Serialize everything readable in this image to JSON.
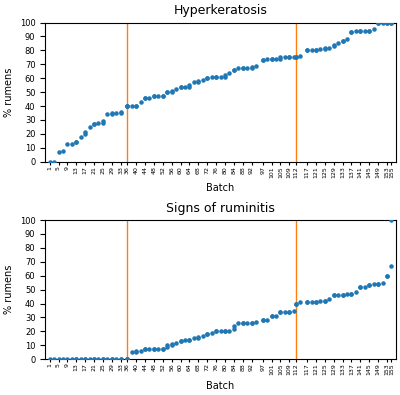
{
  "chart_data": [
    {
      "type": "scatter",
      "title": "Hyperkeratosis",
      "xlabel": "Batch",
      "ylabel": "% rumens",
      "x": [
        1,
        3,
        5,
        7,
        9,
        11,
        13,
        13,
        15,
        17,
        17,
        19,
        21,
        21,
        23,
        25,
        25,
        27,
        29,
        29,
        31,
        33,
        33,
        36,
        36,
        36,
        38,
        40,
        40,
        42,
        44,
        44,
        46,
        48,
        48,
        50,
        52,
        52,
        54,
        54,
        56,
        56,
        58,
        60,
        60,
        62,
        64,
        64,
        66,
        68,
        68,
        70,
        72,
        72,
        74,
        76,
        76,
        78,
        80,
        80,
        82,
        84,
        84,
        86,
        88,
        88,
        90,
        92,
        92,
        94,
        97,
        97,
        99,
        101,
        101,
        103,
        105,
        105,
        107,
        109,
        109,
        111,
        112,
        112,
        114,
        117,
        117,
        119,
        121,
        121,
        123,
        125,
        125,
        127,
        129,
        129,
        131,
        133,
        133,
        135,
        137,
        137,
        139,
        141,
        141,
        143,
        145,
        145,
        147,
        149,
        149,
        151,
        153,
        153,
        155,
        155
      ],
      "values": [
        0,
        0,
        7,
        8,
        13,
        13,
        14,
        14,
        18,
        20,
        21,
        25,
        27,
        27,
        28,
        28,
        29,
        34,
        34,
        35,
        35,
        35,
        36,
        40,
        40,
        40,
        40,
        40,
        40,
        43,
        46,
        46,
        46,
        47,
        47,
        47,
        47,
        47,
        50,
        50,
        50,
        51,
        52,
        54,
        54,
        54,
        54,
        55,
        57,
        57,
        58,
        59,
        60,
        60,
        61,
        61,
        61,
        61,
        61,
        62,
        64,
        66,
        66,
        67,
        67,
        67,
        67,
        67,
        68,
        69,
        73,
        73,
        74,
        74,
        74,
        74,
        74,
        75,
        75,
        75,
        75,
        75,
        75,
        75,
        76,
        80,
        80,
        80,
        80,
        80,
        81,
        81,
        82,
        82,
        83,
        84,
        85,
        87,
        87,
        88,
        93,
        93,
        94,
        94,
        94,
        94,
        94,
        94,
        95,
        100,
        100,
        100,
        100,
        100,
        100,
        100
      ],
      "vlines": [
        36,
        112
      ],
      "xlim": [
        -1,
        157
      ],
      "xticks": [
        1,
        5,
        9,
        13,
        17,
        21,
        25,
        29,
        33,
        36,
        40,
        44,
        48,
        52,
        56,
        60,
        64,
        68,
        72,
        76,
        80,
        84,
        88,
        92,
        97,
        101,
        105,
        109,
        112,
        117,
        121,
        125,
        129,
        133,
        137,
        141,
        145,
        149,
        153,
        155
      ],
      "ylim": [
        0,
        100
      ],
      "yticks": [
        0,
        10,
        20,
        30,
        40,
        50,
        60,
        70,
        80,
        90,
        100
      ],
      "grid": false
    },
    {
      "type": "scatter",
      "title": "Signs of ruminitis",
      "xlabel": "Batch",
      "ylabel": "% rumens",
      "x": [
        1,
        3,
        5,
        7,
        9,
        11,
        13,
        13,
        15,
        17,
        17,
        19,
        21,
        21,
        23,
        25,
        25,
        27,
        29,
        29,
        31,
        33,
        33,
        36,
        36,
        36,
        38,
        40,
        40,
        42,
        44,
        44,
        46,
        48,
        48,
        50,
        52,
        52,
        54,
        54,
        56,
        56,
        58,
        60,
        60,
        62,
        64,
        64,
        66,
        68,
        68,
        70,
        72,
        72,
        74,
        76,
        76,
        78,
        80,
        80,
        82,
        84,
        84,
        86,
        88,
        88,
        90,
        92,
        92,
        94,
        97,
        97,
        99,
        101,
        101,
        103,
        105,
        105,
        107,
        109,
        109,
        111,
        112,
        112,
        114,
        117,
        117,
        119,
        121,
        121,
        123,
        125,
        125,
        127,
        129,
        129,
        131,
        133,
        133,
        135,
        137,
        137,
        139,
        141,
        141,
        143,
        145,
        145,
        147,
        149,
        149,
        151,
        153,
        153,
        155,
        155
      ],
      "values": [
        0,
        0,
        0,
        0,
        0,
        0,
        0,
        0,
        0,
        0,
        0,
        0,
        0,
        0,
        0,
        0,
        0,
        0,
        0,
        0,
        0,
        0,
        0,
        0,
        0,
        0,
        5,
        5,
        6,
        6,
        7,
        7,
        7,
        7,
        7,
        7,
        7,
        7,
        9,
        10,
        10,
        11,
        12,
        13,
        13,
        14,
        14,
        14,
        15,
        15,
        16,
        17,
        18,
        18,
        19,
        20,
        20,
        20,
        20,
        20,
        20,
        22,
        24,
        26,
        26,
        26,
        26,
        26,
        26,
        27,
        28,
        28,
        28,
        31,
        31,
        31,
        34,
        34,
        34,
        34,
        34,
        35,
        40,
        40,
        41,
        41,
        41,
        41,
        41,
        41,
        42,
        42,
        42,
        43,
        46,
        46,
        46,
        46,
        46,
        47,
        47,
        47,
        48,
        52,
        52,
        52,
        53,
        53,
        54,
        54,
        54,
        55,
        60,
        60,
        67,
        100
      ],
      "vlines": [
        36,
        112
      ],
      "xlim": [
        -1,
        157
      ],
      "xticks": [
        1,
        5,
        9,
        13,
        17,
        21,
        25,
        29,
        33,
        36,
        40,
        44,
        48,
        52,
        56,
        60,
        64,
        68,
        72,
        76,
        80,
        84,
        88,
        92,
        97,
        101,
        105,
        109,
        112,
        117,
        121,
        125,
        129,
        133,
        137,
        141,
        145,
        149,
        153,
        155
      ],
      "ylim": [
        0,
        100
      ],
      "yticks": [
        0,
        10,
        20,
        30,
        40,
        50,
        60,
        70,
        80,
        90,
        100
      ],
      "grid": false
    }
  ]
}
